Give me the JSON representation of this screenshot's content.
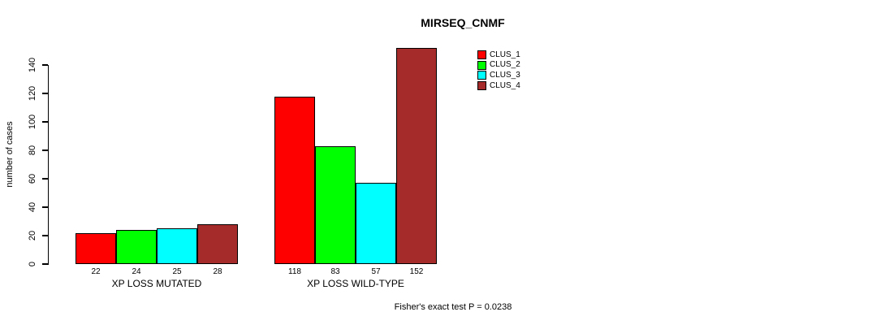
{
  "chart_data": {
    "type": "bar",
    "title": "MIRSEQ_CNMF",
    "ylabel": "number of cases",
    "xlabel": "",
    "footnote": "Fisher's exact test P = 0.0238",
    "categories": [
      "XP LOSS MUTATED",
      "XP LOSS WILD-TYPE"
    ],
    "series": [
      {
        "name": "CLUS_1",
        "color": "#FF0000",
        "values": [
          22,
          118
        ]
      },
      {
        "name": "CLUS_2",
        "color": "#00FF00",
        "values": [
          24,
          83
        ]
      },
      {
        "name": "CLUS_3",
        "color": "#00FFFF",
        "values": [
          25,
          57
        ]
      },
      {
        "name": "CLUS_4",
        "color": "#A52A2A",
        "values": [
          28,
          152
        ]
      }
    ],
    "y_ticks": [
      0,
      20,
      40,
      60,
      80,
      100,
      120,
      140
    ],
    "ylim": [
      0,
      160
    ],
    "show_value_labels": true,
    "grid": false,
    "legend_position": "right-inside-top",
    "background_color": "#FFFFFF",
    "axis_color": "#000000"
  }
}
